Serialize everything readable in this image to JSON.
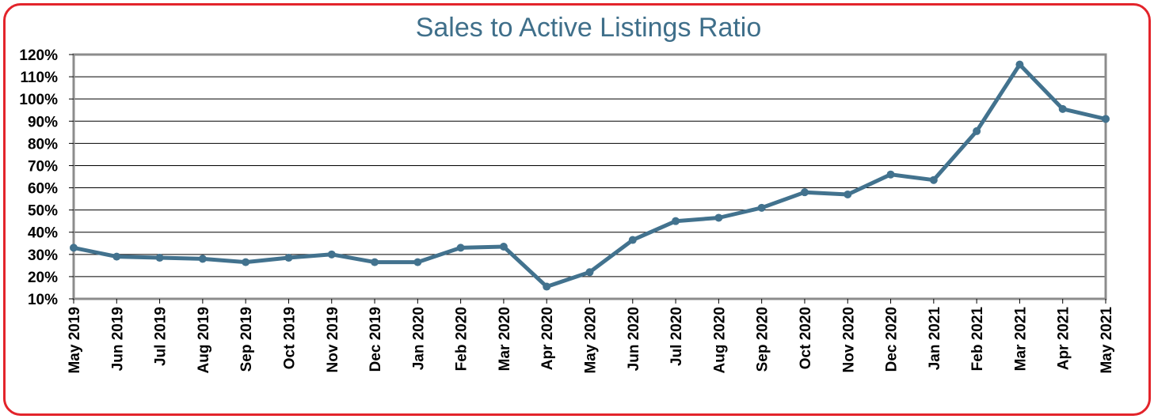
{
  "chart_data": {
    "type": "line",
    "title": "Sales to Active Listings Ratio",
    "xlabel": "",
    "ylabel": "",
    "categories": [
      "May 2019",
      "Jun 2019",
      "Jul 2019",
      "Aug 2019",
      "Sep 2019",
      "Oct 2019",
      "Nov 2019",
      "Dec 2019",
      "Jan 2020",
      "Feb 2020",
      "Mar 2020",
      "Apr 2020",
      "May 2020",
      "Jun 2020",
      "Jul 2020",
      "Aug 2020",
      "Sep 2020",
      "Oct 2020",
      "Nov 2020",
      "Dec 2020",
      "Jan 2021",
      "Feb 2021",
      "Mar 2021",
      "Apr 2021",
      "May 2021"
    ],
    "series": [
      {
        "values": [
          33,
          29,
          28.5,
          28,
          26.5,
          28.5,
          30,
          26.5,
          26.5,
          33,
          33.5,
          15.5,
          22,
          36.5,
          45,
          46.5,
          51,
          58,
          57,
          66,
          63.5,
          85.5,
          115.5,
          95.5,
          91
        ]
      }
    ],
    "ylim": [
      10,
      120
    ],
    "ytick_labels": [
      "120%",
      "110%",
      "100%",
      "90%",
      "80%",
      "70%",
      "60%",
      "50%",
      "40%",
      "30%",
      "20%",
      "10%"
    ],
    "grid": true,
    "legend": "none",
    "colors": {
      "line": "#42728e",
      "frame": "#e3242b",
      "title": "#3f6f8a",
      "plot_border": "#8c8c8c"
    }
  }
}
